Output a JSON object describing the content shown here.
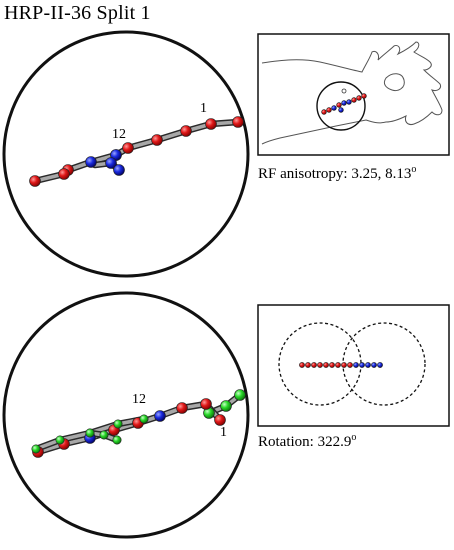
{
  "header": {
    "title": "HRP-II-36 Split 1"
  },
  "panels": {
    "top": {
      "labels": {
        "first": "1",
        "second": "12"
      },
      "caption": {
        "text": "RF anisotropy: 3.25, 8.13",
        "suffix": "o"
      }
    },
    "bottom": {
      "labels": {
        "first": "1",
        "second": "12"
      },
      "caption": {
        "text": "Rotation: 322.9",
        "suffix": "o"
      }
    }
  },
  "colors": {
    "red": "#e01818",
    "blue": "#1a2be0",
    "green": "#28d828",
    "rod": "#9a9a9a",
    "outline": "#111111"
  }
}
